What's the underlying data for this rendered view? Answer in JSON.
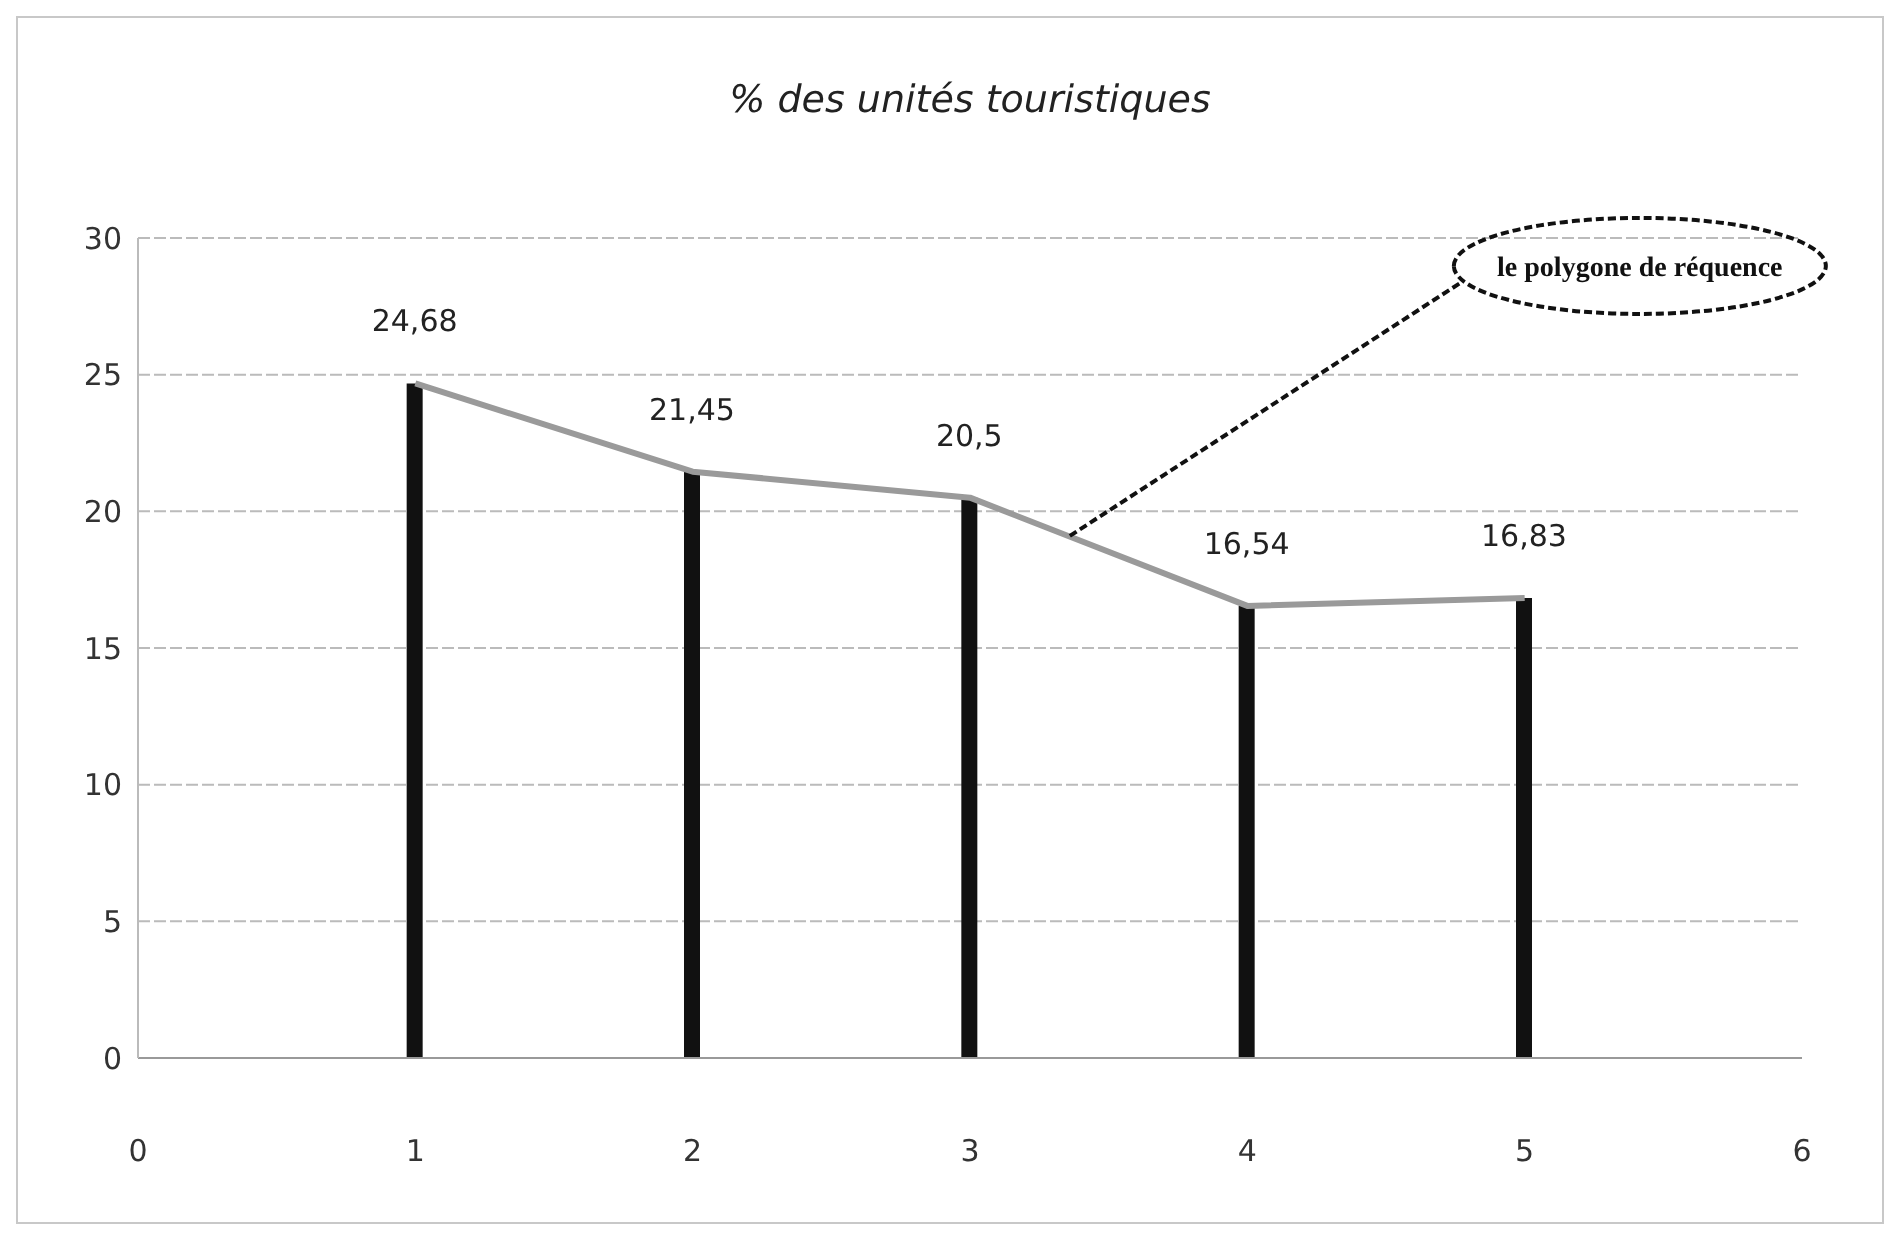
{
  "chart_data": {
    "type": "bar",
    "title": "% des unités touristiques",
    "x": [
      1,
      2,
      3,
      4,
      5
    ],
    "series": [
      {
        "color": "#111111",
        "values": [
          24.68,
          21.45,
          20.5,
          16.54,
          16.83
        ],
        "value_labels": [
          "24,68",
          "21,45",
          "20,5",
          "16,54",
          "16,83"
        ]
      },
      {
        "type": "line",
        "color": "#9a9a9a",
        "values": [
          24.68,
          21.45,
          20.5,
          16.54,
          16.83
        ]
      }
    ],
    "xlim": [
      0,
      6
    ],
    "xticks": [
      0,
      1,
      2,
      3,
      4,
      5,
      6
    ],
    "ylim": [
      0,
      30
    ],
    "yticks": [
      0,
      5,
      10,
      15,
      20,
      25,
      30
    ],
    "grid": "y",
    "annotations": [
      {
        "text": "le polygone de réquence",
        "x": 3.36,
        "y": 19.1
      }
    ]
  }
}
